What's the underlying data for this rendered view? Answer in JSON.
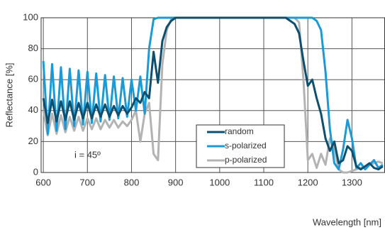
{
  "chart_data": {
    "type": "line",
    "ylabel": "Reflectance [%]",
    "xlabel": "Wavelength [nm]",
    "annotation": "i = 45º",
    "x": [
      600,
      610,
      620,
      630,
      640,
      650,
      660,
      670,
      680,
      690,
      700,
      710,
      720,
      730,
      740,
      750,
      760,
      770,
      780,
      790,
      800,
      810,
      820,
      830,
      840,
      850,
      860,
      870,
      880,
      890,
      900,
      910,
      920,
      930,
      940,
      950,
      960,
      970,
      980,
      990,
      1000,
      1010,
      1020,
      1030,
      1040,
      1050,
      1060,
      1070,
      1080,
      1090,
      1100,
      1110,
      1120,
      1130,
      1140,
      1150,
      1160,
      1170,
      1180,
      1190,
      1200,
      1210,
      1220,
      1230,
      1240,
      1250,
      1260,
      1270,
      1280,
      1290,
      1300,
      1310,
      1320,
      1330,
      1340,
      1350,
      1360,
      1370
    ],
    "series": [
      {
        "name": "random",
        "color": "#0d4f6e",
        "values": [
          48,
          32,
          47,
          33,
          46,
          34,
          46,
          34,
          45,
          35,
          45,
          35,
          44,
          36,
          44,
          36,
          43,
          37,
          43,
          38,
          42,
          48,
          45,
          52,
          48,
          78,
          58,
          85,
          94,
          98,
          100,
          100,
          100,
          100,
          100,
          100,
          100,
          100,
          100,
          100,
          100,
          100,
          100,
          100,
          100,
          100,
          100,
          100,
          100,
          100,
          100,
          100,
          100,
          100,
          100,
          100,
          98,
          96,
          90,
          72,
          56,
          60,
          48,
          38,
          22,
          14,
          20,
          6,
          8,
          17,
          14,
          4,
          2,
          4,
          6,
          3,
          2,
          4
        ]
      },
      {
        "name": "s-polarized",
        "color": "#1a9ad6",
        "values": [
          72,
          25,
          70,
          27,
          68,
          28,
          67,
          30,
          66,
          31,
          65,
          32,
          64,
          33,
          63,
          34,
          62,
          35,
          61,
          36,
          60,
          40,
          62,
          38,
          80,
          99,
          100,
          100,
          100,
          100,
          100,
          100,
          100,
          100,
          100,
          100,
          100,
          100,
          100,
          100,
          100,
          100,
          100,
          100,
          100,
          100,
          100,
          100,
          100,
          100,
          100,
          100,
          100,
          100,
          100,
          100,
          100,
          100,
          100,
          100,
          100,
          100,
          98,
          92,
          65,
          28,
          6,
          2,
          15,
          34,
          22,
          3,
          6,
          2,
          5,
          8,
          3,
          5
        ]
      },
      {
        "name": "p-polarized",
        "color": "#b3b3b3",
        "values": [
          40,
          24,
          38,
          25,
          37,
          26,
          36,
          27,
          36,
          27,
          35,
          28,
          35,
          28,
          34,
          29,
          34,
          29,
          33,
          30,
          34,
          40,
          20,
          38,
          45,
          12,
          8,
          70,
          92,
          99,
          100,
          100,
          100,
          100,
          100,
          100,
          100,
          100,
          100,
          100,
          100,
          100,
          100,
          100,
          100,
          100,
          100,
          100,
          100,
          100,
          100,
          100,
          100,
          100,
          100,
          100,
          100,
          100,
          97,
          60,
          8,
          12,
          3,
          12,
          5,
          22,
          15,
          2,
          0,
          0,
          1,
          2,
          3,
          4,
          5,
          6,
          7,
          6
        ]
      }
    ],
    "xlim": [
      595,
      1375
    ],
    "ylim": [
      0,
      100
    ],
    "xticks": [
      600,
      700,
      800,
      900,
      1000,
      1100,
      1200,
      1300
    ],
    "yticks": [
      0,
      20,
      40,
      60,
      80,
      100
    ],
    "grid": true,
    "legend": "lower-center"
  }
}
